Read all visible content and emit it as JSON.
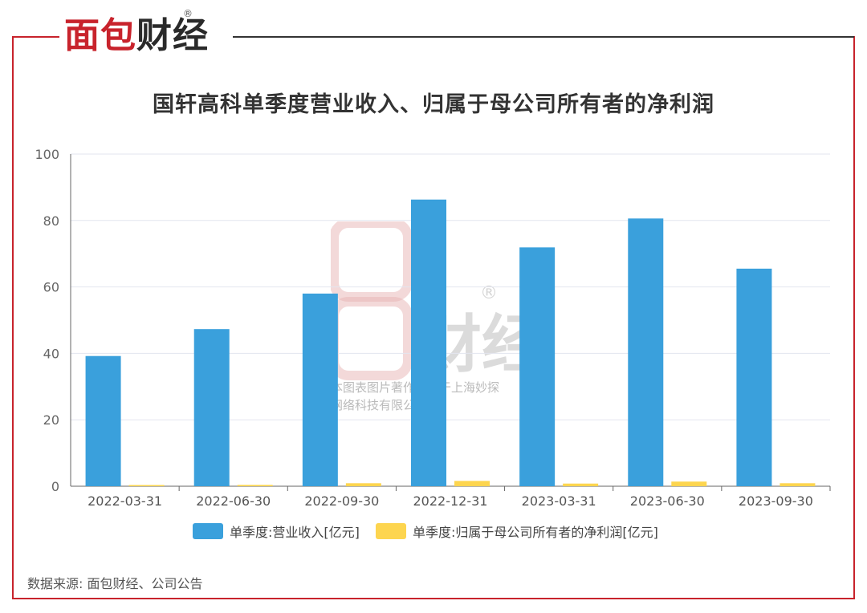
{
  "brand": {
    "logo_part1": "面包",
    "logo_part2": "财经",
    "registered": "®"
  },
  "colors": {
    "frame": "#c8232c",
    "series1": "#3aa0dc",
    "series2": "#fdd54f"
  },
  "watermark": {
    "text_line1": "本图表图片著作权属于上海妙探",
    "text_line2": "网络科技有限公司"
  },
  "source": "数据来源: 面包财经、公司公告",
  "chart_data": {
    "type": "bar",
    "title": "国轩高科单季度营业收入、归属于母公司所有者的净利润",
    "categories": [
      "2022-03-31",
      "2022-06-30",
      "2022-09-30",
      "2022-12-31",
      "2023-03-31",
      "2023-06-30",
      "2023-09-30"
    ],
    "series": [
      {
        "name": "单季度:营业收入[亿元]",
        "values": [
          39.2,
          47.3,
          58.0,
          86.3,
          71.9,
          80.6,
          65.5
        ]
      },
      {
        "name": "单季度:归属于母公司所有者的净利润[亿元]",
        "values": [
          0.3,
          0.4,
          0.9,
          1.6,
          0.8,
          1.4,
          0.9
        ]
      }
    ],
    "ylim": [
      0,
      100
    ],
    "yticks": [
      0,
      20,
      40,
      60,
      80,
      100
    ],
    "grid": true,
    "legend": "bottom"
  }
}
